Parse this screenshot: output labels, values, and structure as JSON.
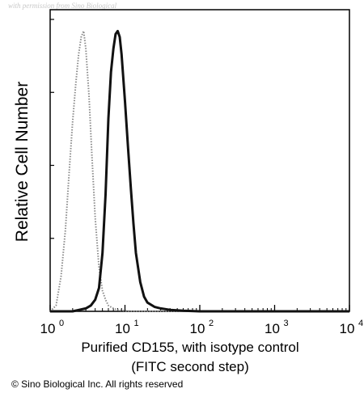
{
  "watermark": "with permission from Sino Biological",
  "copyright": "© Sino Biological Inc. All rights reserved",
  "chart_data": {
    "type": "line",
    "title": "",
    "ylabel": "Relative Cell Number",
    "xlabel_line1": "Purified CD155, with isotype control",
    "xlabel_line2": "(FITC second step)",
    "x_scale": "log",
    "xlim": [
      1,
      10000
    ],
    "ylim": [
      0,
      100
    ],
    "grid": false,
    "x_ticks": [
      {
        "base": "10",
        "exp": "0"
      },
      {
        "base": "10",
        "exp": "1"
      },
      {
        "base": "10",
        "exp": "2"
      },
      {
        "base": "10",
        "exp": "3"
      },
      {
        "base": "10",
        "exp": "4"
      }
    ],
    "series": [
      {
        "style": "dotted-gray",
        "color": "#8a8a8a",
        "x": [
          1.0,
          1.2,
          1.4,
          1.6,
          1.8,
          2.0,
          2.2,
          2.4,
          2.6,
          2.8,
          3.0,
          3.3,
          3.6,
          4.0,
          4.5,
          5.0,
          5.5,
          6.0,
          7.0,
          8.0,
          9.0,
          10,
          11,
          12,
          15,
          20,
          30,
          100,
          10000
        ],
        "y": [
          0,
          2,
          12,
          28,
          48,
          65,
          78,
          88,
          94,
          96,
          90,
          74,
          54,
          32,
          15,
          7,
          4,
          2,
          1,
          0.5,
          0.3,
          0.2,
          0.1,
          0,
          0,
          0,
          0,
          0,
          0
        ]
      },
      {
        "style": "solid-black",
        "color": "#111111",
        "x": [
          1.0,
          2.0,
          3.0,
          3.5,
          4.0,
          4.5,
          5.0,
          5.5,
          6.0,
          6.5,
          7.0,
          7.5,
          8.0,
          8.5,
          9.0,
          10,
          11,
          12,
          13,
          14,
          16,
          18,
          20,
          25,
          30,
          40,
          60,
          100,
          10000
        ],
        "y": [
          0,
          0,
          1,
          2,
          4,
          8,
          20,
          40,
          66,
          82,
          90,
          95,
          96,
          94,
          88,
          72,
          56,
          42,
          30,
          20,
          10,
          5,
          3,
          1.5,
          1,
          0.5,
          0.2,
          0,
          0
        ]
      }
    ]
  }
}
